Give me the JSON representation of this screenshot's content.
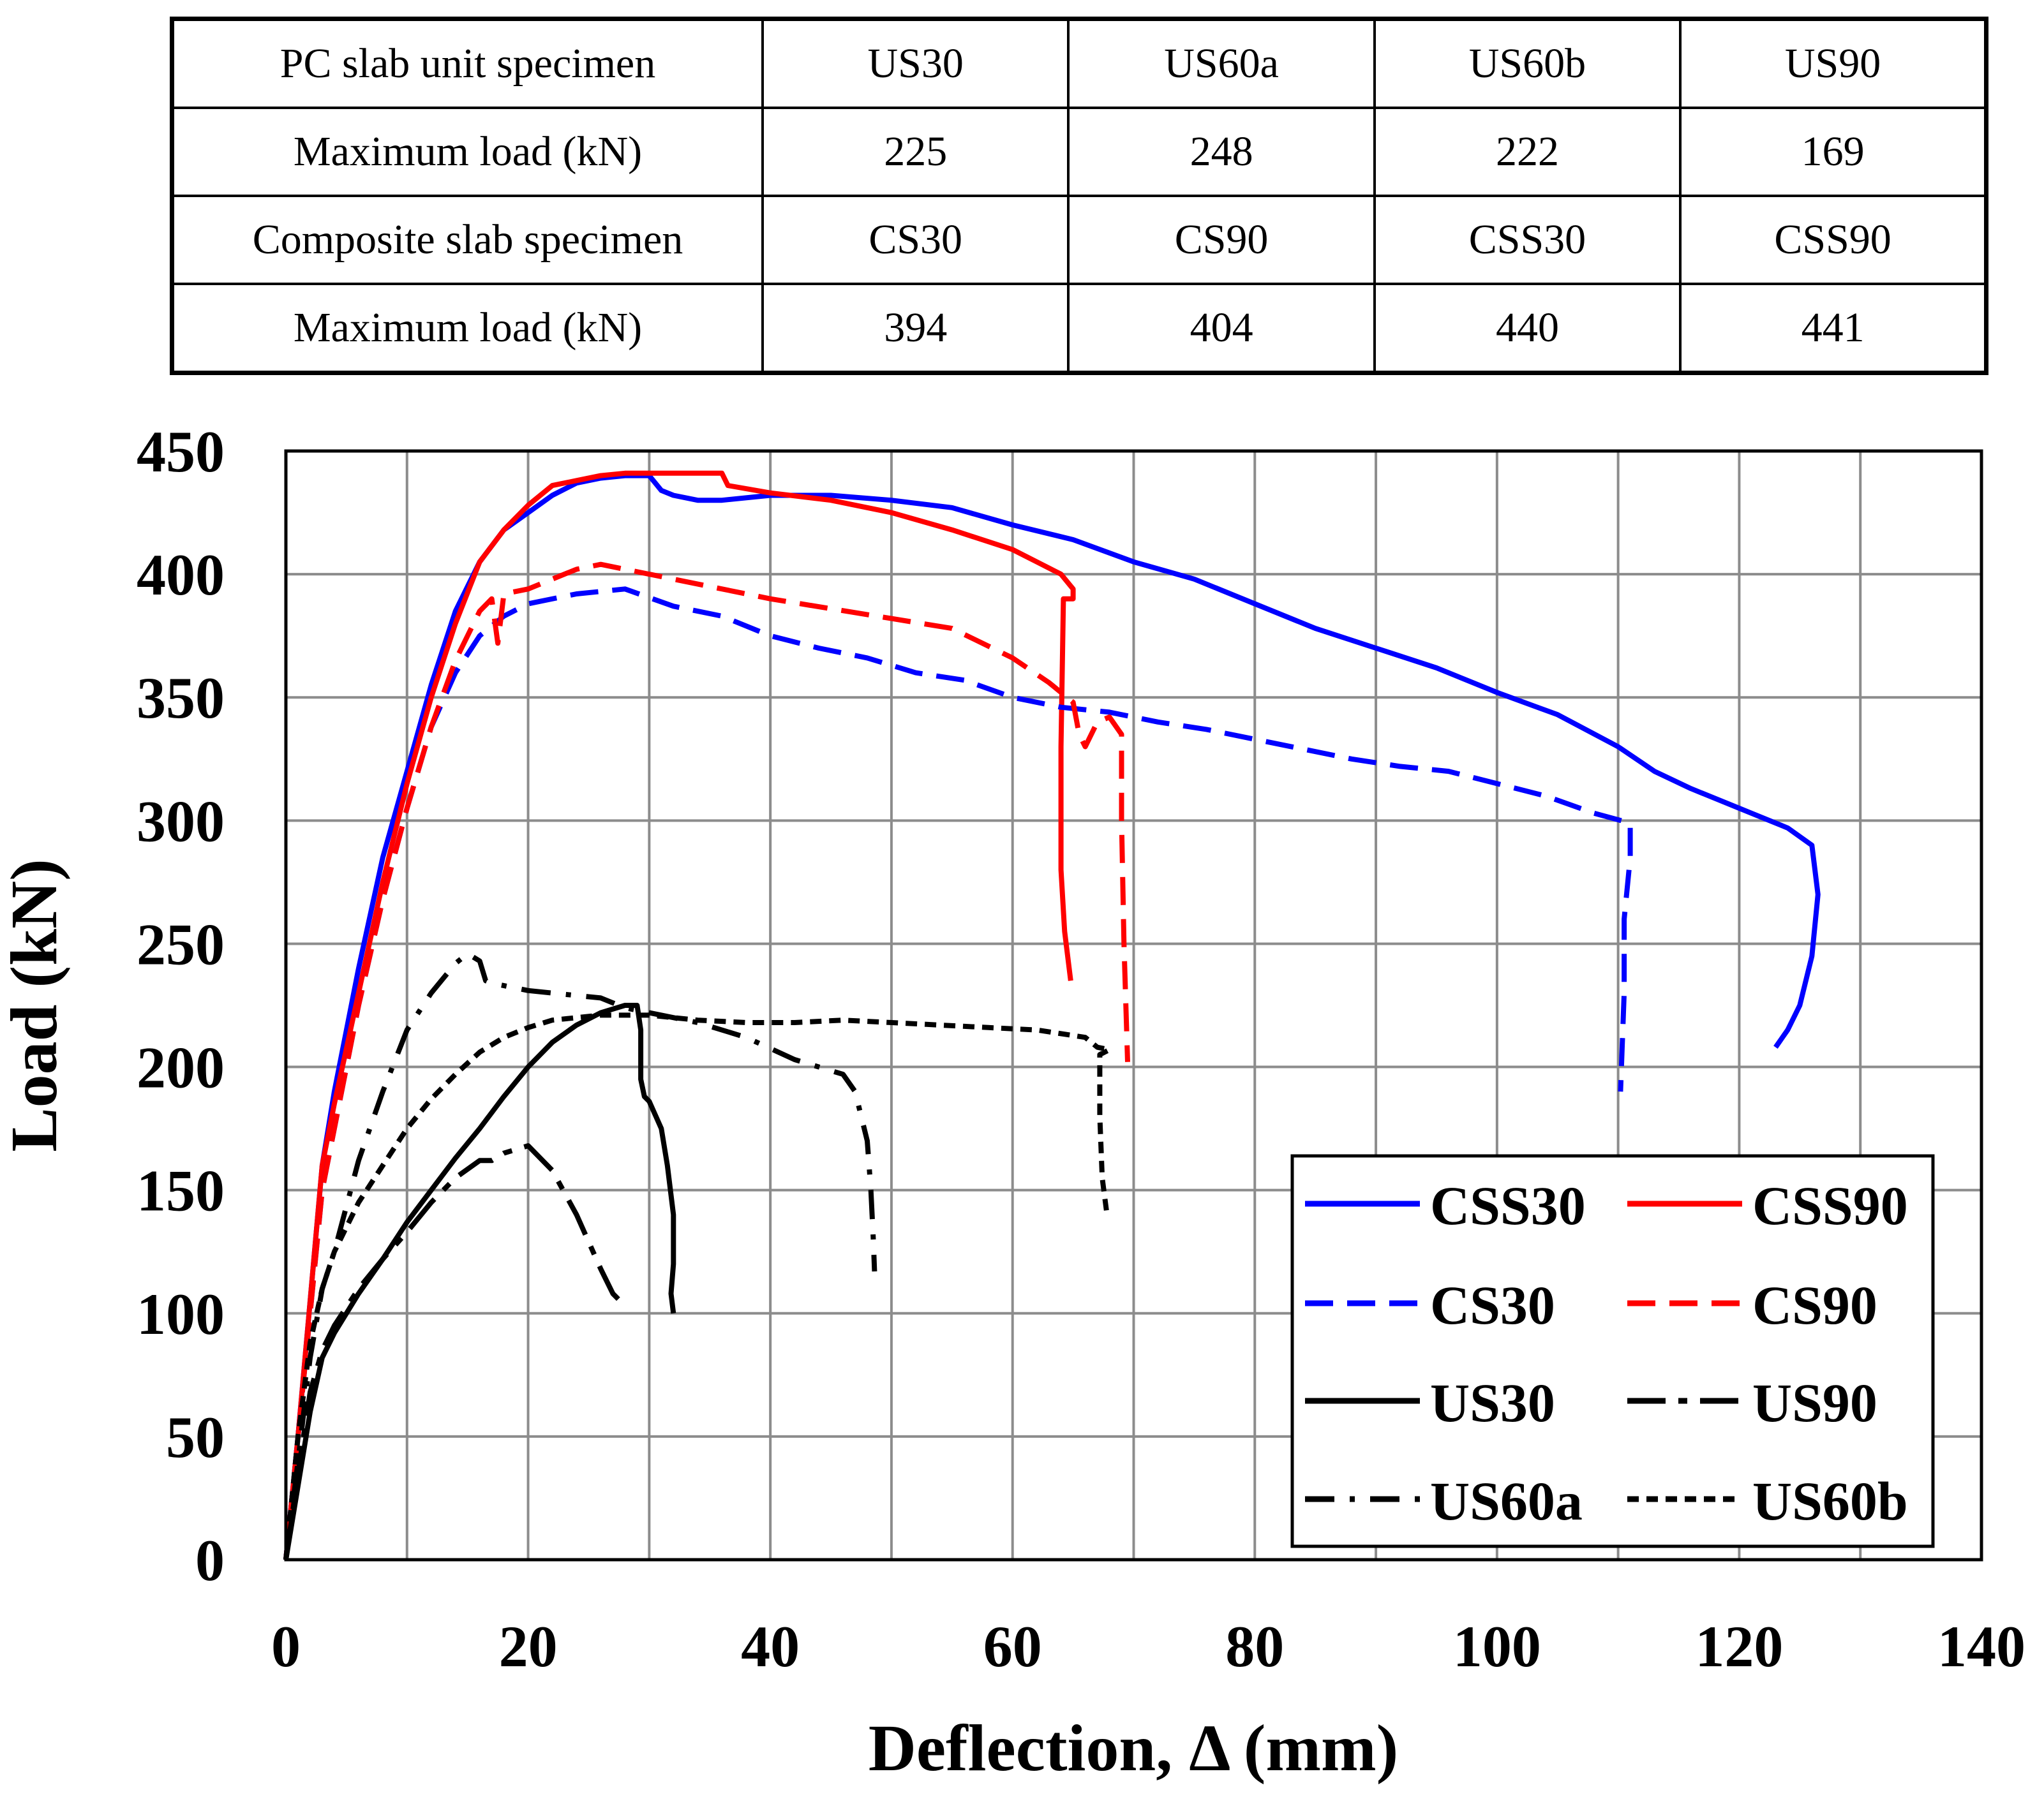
{
  "table": {
    "rows": [
      [
        "PC slab unit specimen",
        "US30",
        "US60a",
        "US60b",
        "US90"
      ],
      [
        "Maximum load (kN)",
        "225",
        "248",
        "222",
        "169"
      ],
      [
        "Composite slab specimen",
        "CS30",
        "CS90",
        "CSS30",
        "CSS90"
      ],
      [
        "Maximum load (kN)",
        "394",
        "404",
        "440",
        "441"
      ]
    ]
  },
  "chart_data": {
    "type": "line",
    "title": "",
    "xlabel": "Deflection, Δ (mm)",
    "ylabel": "Load (kN)",
    "xlim": [
      0,
      140
    ],
    "ylim": [
      0,
      450
    ],
    "xticks": [
      0,
      20,
      40,
      60,
      80,
      100,
      120,
      140
    ],
    "yticks": [
      0,
      50,
      100,
      150,
      200,
      250,
      300,
      350,
      400,
      450
    ],
    "grid": true,
    "legend_position": "bottom-right",
    "series": [
      {
        "name": "CSS30",
        "color": "#0000ff",
        "dash": "solid",
        "x": [
          0,
          1,
          2,
          3,
          4,
          6,
          8,
          10,
          12,
          14,
          16,
          18,
          20,
          22,
          24,
          26,
          28,
          30,
          31,
          32,
          34,
          36,
          40,
          45,
          50,
          55,
          60,
          65,
          70,
          75,
          80,
          85,
          90,
          95,
          100,
          105,
          110,
          113,
          116,
          120,
          124,
          126,
          126.5,
          126,
          125,
          124,
          123
        ],
        "y": [
          0,
          50,
          105,
          160,
          190,
          240,
          285,
          320,
          355,
          385,
          405,
          418,
          425,
          432,
          437,
          439,
          440,
          440,
          434,
          432,
          430,
          430,
          432,
          432,
          430,
          427,
          420,
          414,
          405,
          398,
          388,
          378,
          370,
          362,
          352,
          343,
          330,
          320,
          313,
          305,
          297,
          290,
          270,
          245,
          225,
          215,
          208
        ]
      },
      {
        "name": "CSS90",
        "color": "#ff0000",
        "dash": "solid",
        "x": [
          0,
          1,
          2,
          3,
          4,
          6,
          8,
          10,
          12,
          14,
          16,
          18,
          20,
          22,
          24,
          26,
          28,
          30,
          32,
          34,
          36,
          36.5,
          40,
          45,
          50,
          55,
          60,
          62,
          64,
          65,
          65,
          64.2,
          64,
          64,
          64.3,
          64.8
        ],
        "y": [
          0,
          50,
          105,
          160,
          185,
          230,
          275,
          315,
          350,
          380,
          405,
          418,
          428,
          436,
          438,
          440,
          441,
          441,
          441,
          441,
          441,
          436,
          433,
          430,
          425,
          418,
          410,
          405,
          400,
          394,
          390,
          390,
          330,
          280,
          255,
          235
        ]
      },
      {
        "name": "CS30",
        "color": "#0000ff",
        "dash": "long",
        "x": [
          0,
          1,
          2,
          3,
          4,
          6,
          8,
          10,
          12,
          14,
          16,
          18,
          20,
          24,
          28,
          32,
          36,
          40,
          44,
          48,
          52,
          56,
          60,
          64,
          68,
          72,
          76,
          80,
          84,
          88,
          92,
          96,
          100,
          104,
          108,
          111,
          111,
          110.5,
          110.5,
          110.2
        ],
        "y": [
          0,
          50,
          100,
          150,
          175,
          225,
          268,
          305,
          338,
          360,
          375,
          383,
          388,
          392,
          394,
          387,
          383,
          375,
          370,
          366,
          360,
          357,
          350,
          346,
          344,
          340,
          337,
          333,
          329,
          325,
          322,
          320,
          315,
          310,
          303,
          299,
          285,
          260,
          230,
          190
        ]
      },
      {
        "name": "CS90",
        "color": "#ff0000",
        "dash": "long",
        "x": [
          0,
          1,
          2,
          3,
          4,
          6,
          8,
          10,
          12,
          14,
          16,
          17,
          17.5,
          18,
          20,
          22,
          24,
          26,
          28,
          30,
          35,
          40,
          45,
          50,
          55,
          60,
          63,
          65,
          65.5,
          66,
          67,
          68,
          69,
          69,
          69.2,
          69.5
        ],
        "y": [
          0,
          50,
          100,
          150,
          175,
          225,
          268,
          305,
          338,
          365,
          385,
          390,
          372,
          392,
          394,
          398,
          402,
          404,
          402,
          400,
          395,
          390,
          386,
          382,
          378,
          366,
          356,
          348,
          335,
          330,
          340,
          342,
          335,
          300,
          250,
          202
        ]
      },
      {
        "name": "US30",
        "color": "#000000",
        "dash": "solid",
        "x": [
          0,
          1,
          2,
          3,
          4,
          6,
          8,
          10,
          12,
          14,
          16,
          18,
          20,
          22,
          24,
          26,
          28,
          29,
          29.3,
          29.3,
          29.6,
          30,
          31,
          31.5,
          32,
          32,
          31.8,
          32
        ],
        "y": [
          0,
          30,
          60,
          82,
          92,
          108,
          122,
          137,
          150,
          163,
          175,
          188,
          200,
          210,
          217,
          222,
          225,
          225,
          215,
          195,
          188,
          186,
          175,
          160,
          140,
          120,
          108,
          100
        ]
      },
      {
        "name": "US90",
        "color": "#000000",
        "dash": "longshort",
        "x": [
          0,
          1,
          2,
          3,
          4,
          6,
          8,
          10,
          12,
          14,
          16,
          17,
          18,
          20,
          22,
          24,
          26,
          27,
          28
        ],
        "y": [
          0,
          35,
          68,
          85,
          95,
          110,
          122,
          133,
          145,
          155,
          162,
          162,
          165,
          168,
          158,
          140,
          118,
          108,
          103
        ]
      },
      {
        "name": "US60a",
        "color": "#000000",
        "dash": "dashdot",
        "x": [
          0,
          1,
          2,
          3,
          4,
          6,
          8,
          10,
          12,
          14,
          15,
          16,
          16.5,
          17,
          20,
          24,
          26,
          28,
          30,
          34,
          38,
          42,
          44,
          46,
          47,
          48,
          48.3,
          48.5,
          48.6
        ],
        "y": [
          0,
          40,
          82,
          110,
          125,
          162,
          190,
          215,
          230,
          242,
          246,
          243,
          235,
          234,
          231,
          229,
          228,
          224,
          222,
          218,
          212,
          203,
          200,
          197,
          190,
          170,
          150,
          130,
          117
        ]
      },
      {
        "name": "US60b",
        "color": "#000000",
        "dash": "shortdash",
        "x": [
          0,
          1,
          2,
          3,
          4,
          6,
          8,
          10,
          12,
          14,
          16,
          18,
          20,
          22,
          24,
          26,
          28,
          30,
          34,
          38,
          42,
          46,
          50,
          54,
          58,
          62,
          66,
          67,
          68,
          67.2,
          67.2,
          67.4,
          67.8
        ],
        "y": [
          0,
          50,
          88,
          110,
          125,
          145,
          160,
          175,
          187,
          197,
          206,
          212,
          216,
          219,
          220,
          221,
          221,
          221,
          219,
          218,
          218,
          219,
          218,
          217,
          216,
          215,
          212,
          208,
          207,
          205,
          180,
          155,
          140
        ]
      }
    ]
  }
}
